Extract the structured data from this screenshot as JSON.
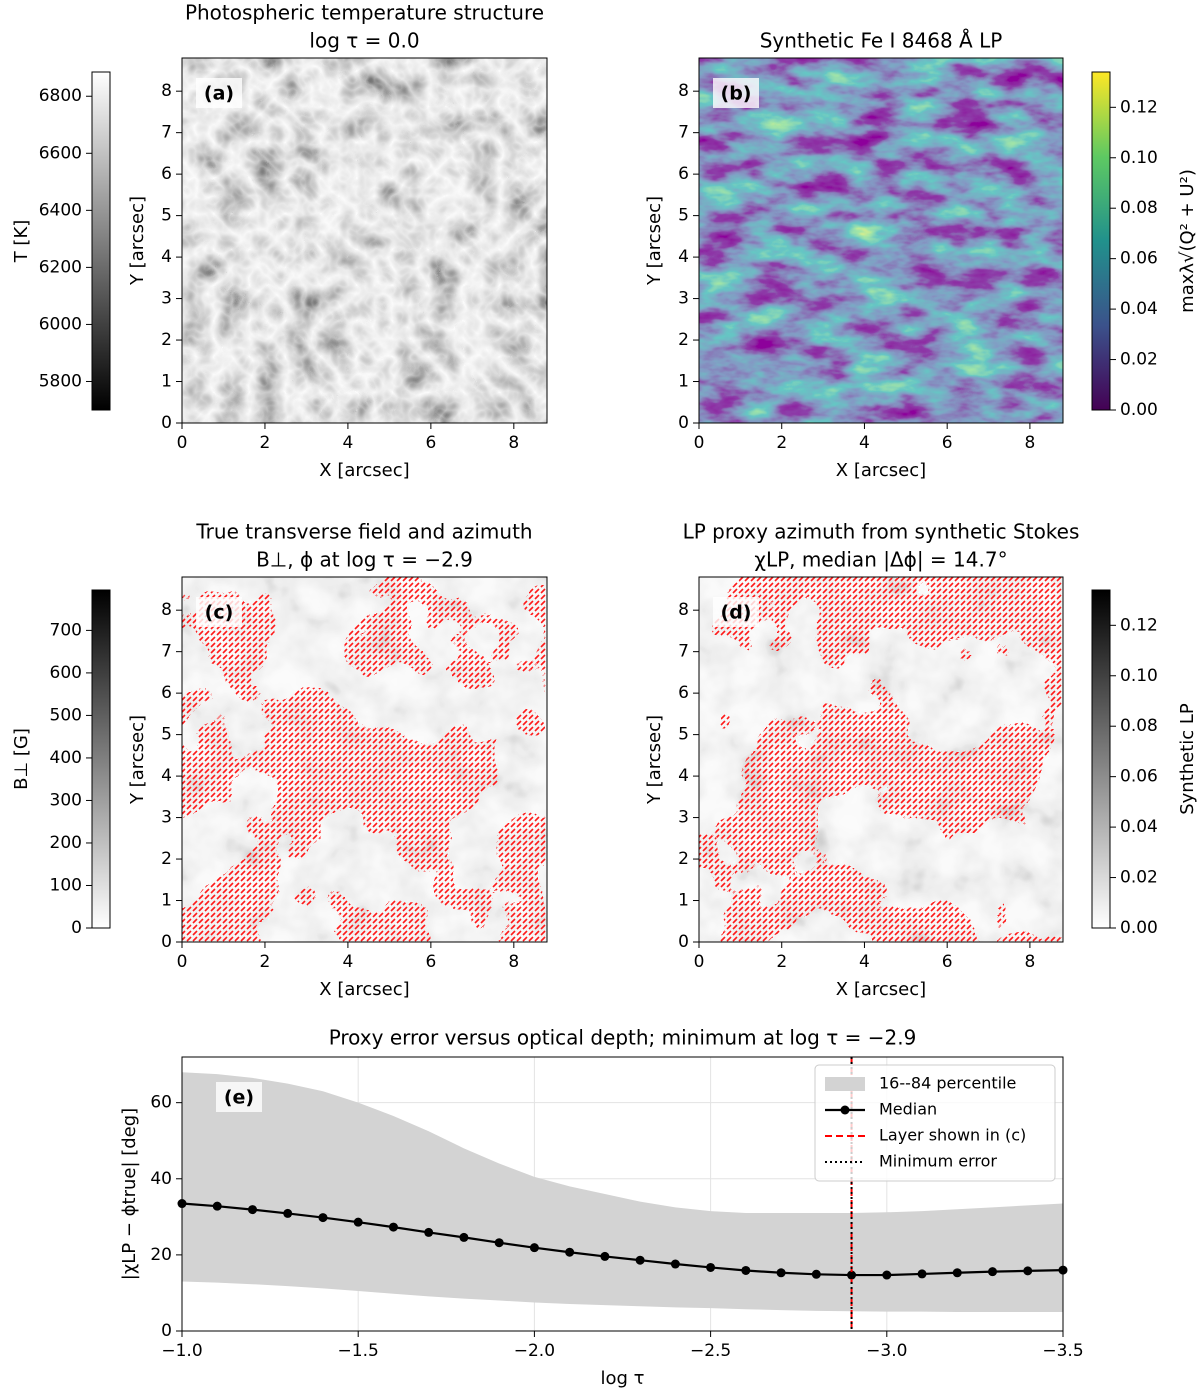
{
  "chart_data": [
    {
      "type": "image",
      "title": [
        "Photospheric temperature structure",
        "log τ = 0.0"
      ],
      "panel_label": "(a)",
      "xlabel": "X [arcsec]",
      "ylabel": "Y [arcsec]",
      "xlim": [
        0,
        8.8
      ],
      "ylim": [
        0,
        8.8
      ],
      "xticks": [
        0,
        2,
        4,
        6,
        8
      ],
      "yticks": [
        0,
        1,
        2,
        3,
        4,
        5,
        6,
        7,
        8
      ],
      "cmap": "gray",
      "colorbar_side": "left",
      "colorbar_label": "T [K]",
      "clim": [
        5700,
        6885
      ],
      "cticks": [
        5800,
        6000,
        6200,
        6400,
        6600,
        6800
      ]
    },
    {
      "type": "image",
      "title": [
        "Synthetic Fe I 8468 Å LP"
      ],
      "panel_label": "(b)",
      "xlabel": "X [arcsec]",
      "ylabel": "Y [arcsec]",
      "xlim": [
        0,
        8.8
      ],
      "ylim": [
        0,
        8.8
      ],
      "xticks": [
        0,
        2,
        4,
        6,
        8
      ],
      "yticks": [
        0,
        1,
        2,
        3,
        4,
        5,
        6,
        7,
        8
      ],
      "cmap": "viridis",
      "colorbar_side": "right",
      "colorbar_label": "maxλ√(Q² + U²)",
      "clim": [
        0,
        0.134
      ],
      "cticks": [
        {
          "value": 0,
          "label": "0.00"
        },
        {
          "value": 0.02,
          "label": "0.02"
        },
        {
          "value": 0.04,
          "label": "0.04"
        },
        {
          "value": 0.06,
          "label": "0.06"
        },
        {
          "value": 0.08,
          "label": "0.08"
        },
        {
          "value": 0.1,
          "label": "0.10"
        },
        {
          "value": 0.12,
          "label": "0.12"
        }
      ]
    },
    {
      "type": "image",
      "title": [
        "True transverse field and azimuth",
        "B⊥, ϕ at log τ = −2.9"
      ],
      "panel_label": "(c)",
      "xlabel": "X [arcsec]",
      "ylabel": "Y [arcsec]",
      "xlim": [
        0,
        8.8
      ],
      "ylim": [
        0,
        8.8
      ],
      "xticks": [
        0,
        2,
        4,
        6,
        8
      ],
      "yticks": [
        0,
        1,
        2,
        3,
        4,
        5,
        6,
        7,
        8
      ],
      "cmap": "gray_r",
      "colorbar_side": "left",
      "colorbar_label": "B⊥ [G]",
      "clim": [
        0,
        795
      ],
      "cticks": [
        0,
        100,
        200,
        300,
        400,
        500,
        600,
        700
      ]
    },
    {
      "type": "image",
      "title": [
        "LP proxy azimuth from synthetic Stokes",
        "χLP, median |Δϕ| = 14.7°"
      ],
      "panel_label": "(d)",
      "xlabel": "X [arcsec]",
      "ylabel": "Y [arcsec]",
      "xlim": [
        0,
        8.8
      ],
      "ylim": [
        0,
        8.8
      ],
      "xticks": [
        0,
        2,
        4,
        6,
        8
      ],
      "yticks": [
        0,
        1,
        2,
        3,
        4,
        5,
        6,
        7,
        8
      ],
      "cmap": "gray_r",
      "colorbar_side": "right",
      "colorbar_label": "Synthetic LP",
      "clim": [
        0,
        0.134
      ],
      "cticks": [
        {
          "value": 0,
          "label": "0.00"
        },
        {
          "value": 0.02,
          "label": "0.02"
        },
        {
          "value": 0.04,
          "label": "0.04"
        },
        {
          "value": 0.06,
          "label": "0.06"
        },
        {
          "value": 0.08,
          "label": "0.08"
        },
        {
          "value": 0.1,
          "label": "0.10"
        },
        {
          "value": 0.12,
          "label": "0.12"
        }
      ]
    },
    {
      "type": "line",
      "title": "Proxy error versus optical depth; minimum at log τ = −2.9",
      "panel_label": "(e)",
      "xlabel": "log τ",
      "ylabel": "|χLP − ϕtrue| [deg]",
      "x": [
        -1.0,
        -1.1,
        -1.2,
        -1.3,
        -1.4,
        -1.5,
        -1.6,
        -1.7,
        -1.8,
        -1.9,
        -2.0,
        -2.1,
        -2.2,
        -2.3,
        -2.4,
        -2.5,
        -2.6,
        -2.7,
        -2.8,
        -2.9,
        -3.0,
        -3.1,
        -3.2,
        -3.3,
        -3.4,
        -3.5
      ],
      "xlim": [
        -1.0,
        -3.5
      ],
      "ylim": [
        0,
        72
      ],
      "xticks": [
        {
          "value": -1.0,
          "label": "−1.0"
        },
        {
          "value": -1.5,
          "label": "−1.5"
        },
        {
          "value": -2.0,
          "label": "−2.0"
        },
        {
          "value": -2.5,
          "label": "−2.5"
        },
        {
          "value": -3.0,
          "label": "−3.0"
        },
        {
          "value": -3.5,
          "label": "−3.5"
        }
      ],
      "yticks": [
        0,
        20,
        40,
        60
      ],
      "grid": true,
      "legend": "upper right",
      "series": [
        {
          "name": "16--84 percentile",
          "type": "band",
          "color": "#d3d3d3",
          "lower": [
            13,
            12.7,
            12.3,
            11.8,
            11.2,
            10.5,
            9.8,
            9.1,
            8.5,
            8,
            7.5,
            7.1,
            6.8,
            6.5,
            6.2,
            6,
            5.7,
            5.5,
            5.3,
            5.2,
            5.1,
            5.1,
            5,
            5,
            5,
            5
          ],
          "upper": [
            68,
            67.5,
            66.5,
            65,
            63,
            60,
            56.5,
            52.5,
            48,
            44,
            40.5,
            38,
            36,
            34,
            32.5,
            31.5,
            31,
            31,
            31,
            31,
            31.2,
            31.5,
            32,
            32.5,
            33,
            33.5
          ]
        },
        {
          "name": "Median",
          "type": "line",
          "color": "#000000",
          "marker": "o",
          "values": [
            33.5,
            32.8,
            31.9,
            30.9,
            29.8,
            28.6,
            27.3,
            25.9,
            24.6,
            23.2,
            21.9,
            20.7,
            19.6,
            18.6,
            17.6,
            16.7,
            15.9,
            15.3,
            14.9,
            14.7,
            14.7,
            15.0,
            15.3,
            15.6,
            15.8,
            16.0
          ]
        },
        {
          "name": "Layer shown in (c)",
          "type": "vline",
          "color": "#ff0000",
          "linestyle": "dashed",
          "x": -2.9
        },
        {
          "name": "Minimum error",
          "type": "vline",
          "color": "#000000",
          "linestyle": "dotted",
          "x": -2.9
        }
      ]
    }
  ]
}
